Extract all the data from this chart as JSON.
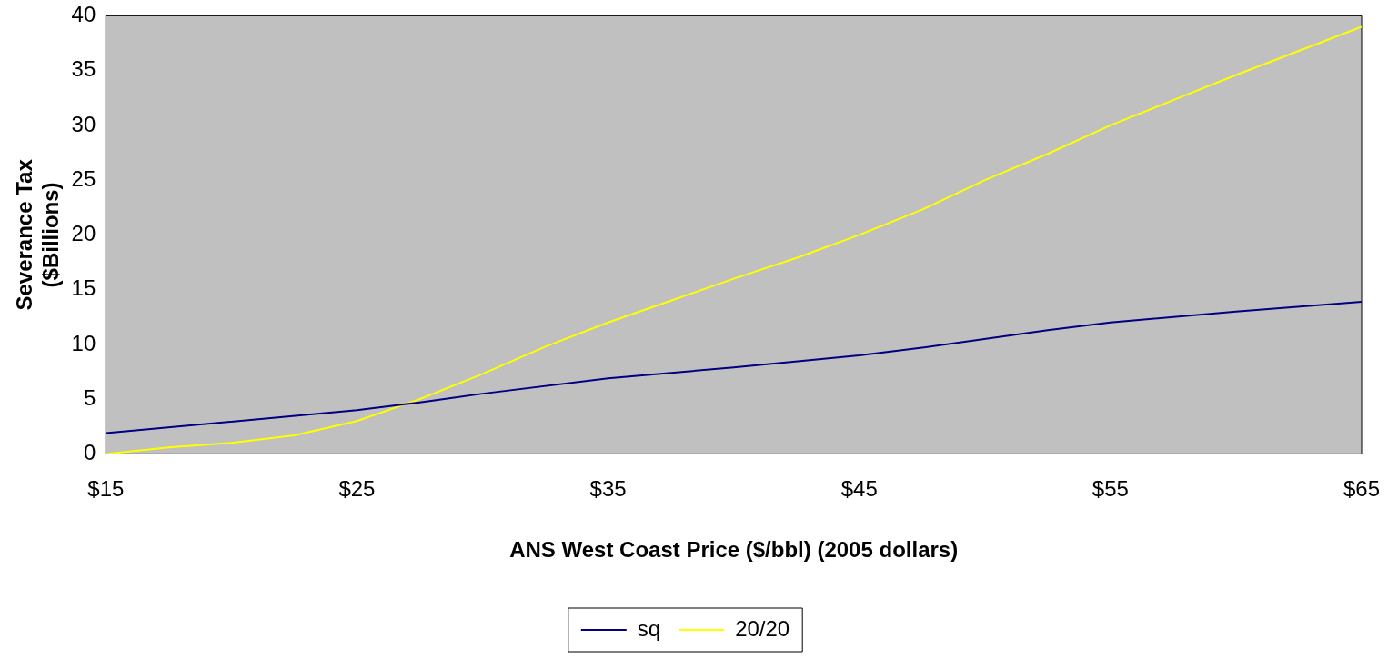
{
  "chart_data": {
    "type": "line",
    "xlabel": "ANS West Coast Price ($/bbl) (2005 dollars)",
    "ylabel": "Severance Tax\n($Billions)",
    "series": [
      {
        "name": "sq",
        "color": "#000080",
        "x": [
          15,
          25,
          27.5,
          30,
          35,
          40,
          45,
          47.5,
          52.5,
          55,
          60,
          65
        ],
        "values": [
          1.9,
          4.0,
          4.7,
          5.5,
          6.9,
          7.9,
          9.0,
          9.7,
          11.3,
          12.0,
          13.0,
          13.9
        ]
      },
      {
        "name": "20/20",
        "color": "#ffff00",
        "x": [
          15,
          17.5,
          20,
          22.5,
          25,
          27.5,
          30,
          32.5,
          35,
          37.5,
          40,
          42.5,
          45,
          47.5,
          50,
          52.5,
          55,
          57.5,
          60,
          62.5,
          65
        ],
        "values": [
          0,
          0.6,
          1.0,
          1.7,
          3.0,
          5.0,
          7.3,
          9.8,
          12.0,
          14.0,
          16.0,
          17.9,
          20.0,
          22.3,
          25.0,
          27.4,
          30.0,
          32.3,
          34.6,
          36.8,
          39.0
        ]
      }
    ],
    "xlim": [
      15,
      65
    ],
    "xticks": [
      {
        "value": 15,
        "label": "$15"
      },
      {
        "value": 25,
        "label": "$25"
      },
      {
        "value": 35,
        "label": "$35"
      },
      {
        "value": 45,
        "label": "$45"
      },
      {
        "value": 55,
        "label": "$55"
      },
      {
        "value": 65,
        "label": "$65"
      }
    ],
    "ylim": [
      0,
      40
    ],
    "yticks": [
      0,
      5,
      10,
      15,
      20,
      25,
      30,
      35,
      40
    ],
    "grid": false,
    "legend": "bottom",
    "marker": "none",
    "line_style": "solid"
  }
}
